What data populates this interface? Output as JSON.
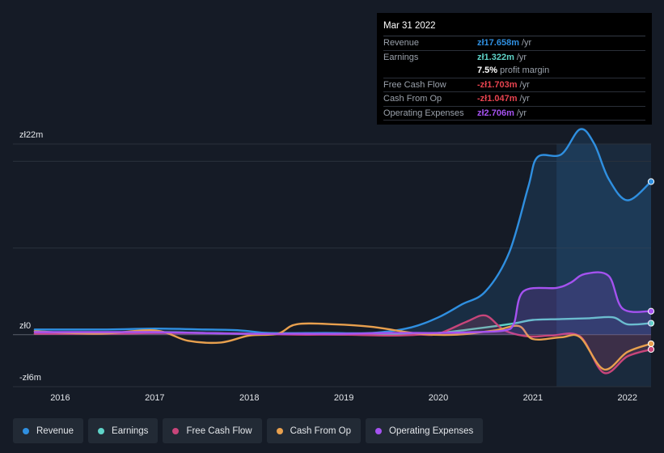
{
  "tooltip": {
    "date": "Mar 31 2022",
    "rows": [
      {
        "label": "Revenue",
        "value": "zł17.658m",
        "unit": "/yr",
        "color": "#2f8fe0"
      },
      {
        "label": "Earnings",
        "value": "zł1.322m",
        "unit": "/yr",
        "color": "#5fd3c8"
      },
      {
        "label": "",
        "value": "7.5%",
        "unit": "profit margin",
        "color": "#ffffff"
      },
      {
        "label": "Free Cash Flow",
        "value": "-zł1.703m",
        "unit": "/yr",
        "color": "#e8434f"
      },
      {
        "label": "Cash From Op",
        "value": "-zł1.047m",
        "unit": "/yr",
        "color": "#e8434f"
      },
      {
        "label": "Operating Expenses",
        "value": "zł2.706m",
        "unit": "/yr",
        "color": "#a552f0"
      }
    ]
  },
  "legend": [
    {
      "label": "Revenue",
      "color": "#2f8fe0"
    },
    {
      "label": "Earnings",
      "color": "#5fd3c8"
    },
    {
      "label": "Free Cash Flow",
      "color": "#c8457a"
    },
    {
      "label": "Cash From Op",
      "color": "#e8a04e"
    },
    {
      "label": "Operating Expenses",
      "color": "#a552f0"
    }
  ],
  "chart_data": {
    "type": "line",
    "ytick_labels": [
      "zł22m",
      "zł0",
      "-zł6m"
    ],
    "ylim": [
      -6,
      22
    ],
    "x_ticks": [
      "2016",
      "2017",
      "2018",
      "2019",
      "2020",
      "2021",
      "2022"
    ],
    "xlim": [
      2015.5,
      2022.25
    ],
    "highlight_from": 2021.25,
    "series": [
      {
        "name": "Revenue",
        "color": "#2f8fe0",
        "x": [
          2015.73,
          2016.5,
          2017.0,
          2017.5,
          2017.9,
          2018.2,
          2018.8,
          2019.3,
          2019.7,
          2020.0,
          2020.25,
          2020.5,
          2020.75,
          2020.95,
          2021.05,
          2021.3,
          2021.5,
          2021.65,
          2021.8,
          2022.0,
          2022.25
        ],
        "y": [
          0.6,
          0.6,
          0.7,
          0.6,
          0.5,
          0.2,
          0.2,
          0.2,
          0.8,
          2.0,
          3.5,
          5.0,
          9.5,
          17.0,
          20.5,
          20.8,
          23.7,
          22.0,
          18.0,
          15.5,
          17.658
        ]
      },
      {
        "name": "Earnings",
        "color": "#5fd3c8",
        "x": [
          2015.73,
          2016.5,
          2017.0,
          2017.5,
          2018.0,
          2018.5,
          2019.0,
          2019.5,
          2020.0,
          2020.4,
          2020.8,
          2021.0,
          2021.3,
          2021.6,
          2021.85,
          2022.0,
          2022.25
        ],
        "y": [
          0.1,
          0.2,
          0.3,
          0.2,
          0.1,
          0.1,
          0.0,
          0.0,
          0.2,
          0.7,
          1.3,
          1.7,
          1.8,
          1.9,
          2.0,
          1.2,
          1.322
        ]
      },
      {
        "name": "Free Cash Flow",
        "color": "#c8457a",
        "x": [
          2015.73,
          2016.5,
          2017.0,
          2017.5,
          2018.0,
          2018.5,
          2019.0,
          2019.5,
          2019.8,
          2020.0,
          2020.3,
          2020.5,
          2020.7,
          2020.95,
          2021.2,
          2021.5,
          2021.75,
          2022.0,
          2022.25
        ],
        "y": [
          0.1,
          0.1,
          0.2,
          0.2,
          0.1,
          0.0,
          0.0,
          -0.1,
          0.0,
          0.1,
          1.5,
          2.2,
          0.5,
          -0.2,
          -0.1,
          -0.2,
          -4.4,
          -2.5,
          -1.703
        ]
      },
      {
        "name": "Cash From Op",
        "color": "#e8a04e",
        "x": [
          2015.73,
          2016.4,
          2017.0,
          2017.35,
          2017.7,
          2018.0,
          2018.3,
          2018.5,
          2018.9,
          2019.3,
          2019.8,
          2020.2,
          2020.6,
          2020.85,
          2021.0,
          2021.3,
          2021.5,
          2021.75,
          2022.0,
          2022.25
        ],
        "y": [
          0.4,
          0.1,
          0.5,
          -0.7,
          -0.9,
          -0.1,
          0.1,
          1.2,
          1.2,
          0.9,
          0.1,
          0.0,
          0.5,
          1.0,
          -0.5,
          -0.3,
          -0.3,
          -4.0,
          -2.0,
          -1.047
        ]
      },
      {
        "name": "Operating Expenses",
        "color": "#a552f0",
        "x": [
          2015.73,
          2016.5,
          2017.0,
          2017.5,
          2018.0,
          2018.5,
          2019.0,
          2019.5,
          2020.0,
          2020.4,
          2020.7,
          2020.8,
          2020.9,
          2021.25,
          2021.4,
          2021.55,
          2021.8,
          2021.95,
          2022.25
        ],
        "y": [
          0.3,
          0.3,
          0.3,
          0.2,
          0.1,
          0.1,
          0.1,
          0.2,
          0.2,
          0.3,
          0.5,
          1.3,
          5.0,
          5.4,
          6.0,
          7.0,
          6.8,
          3.0,
          2.706
        ]
      }
    ]
  }
}
